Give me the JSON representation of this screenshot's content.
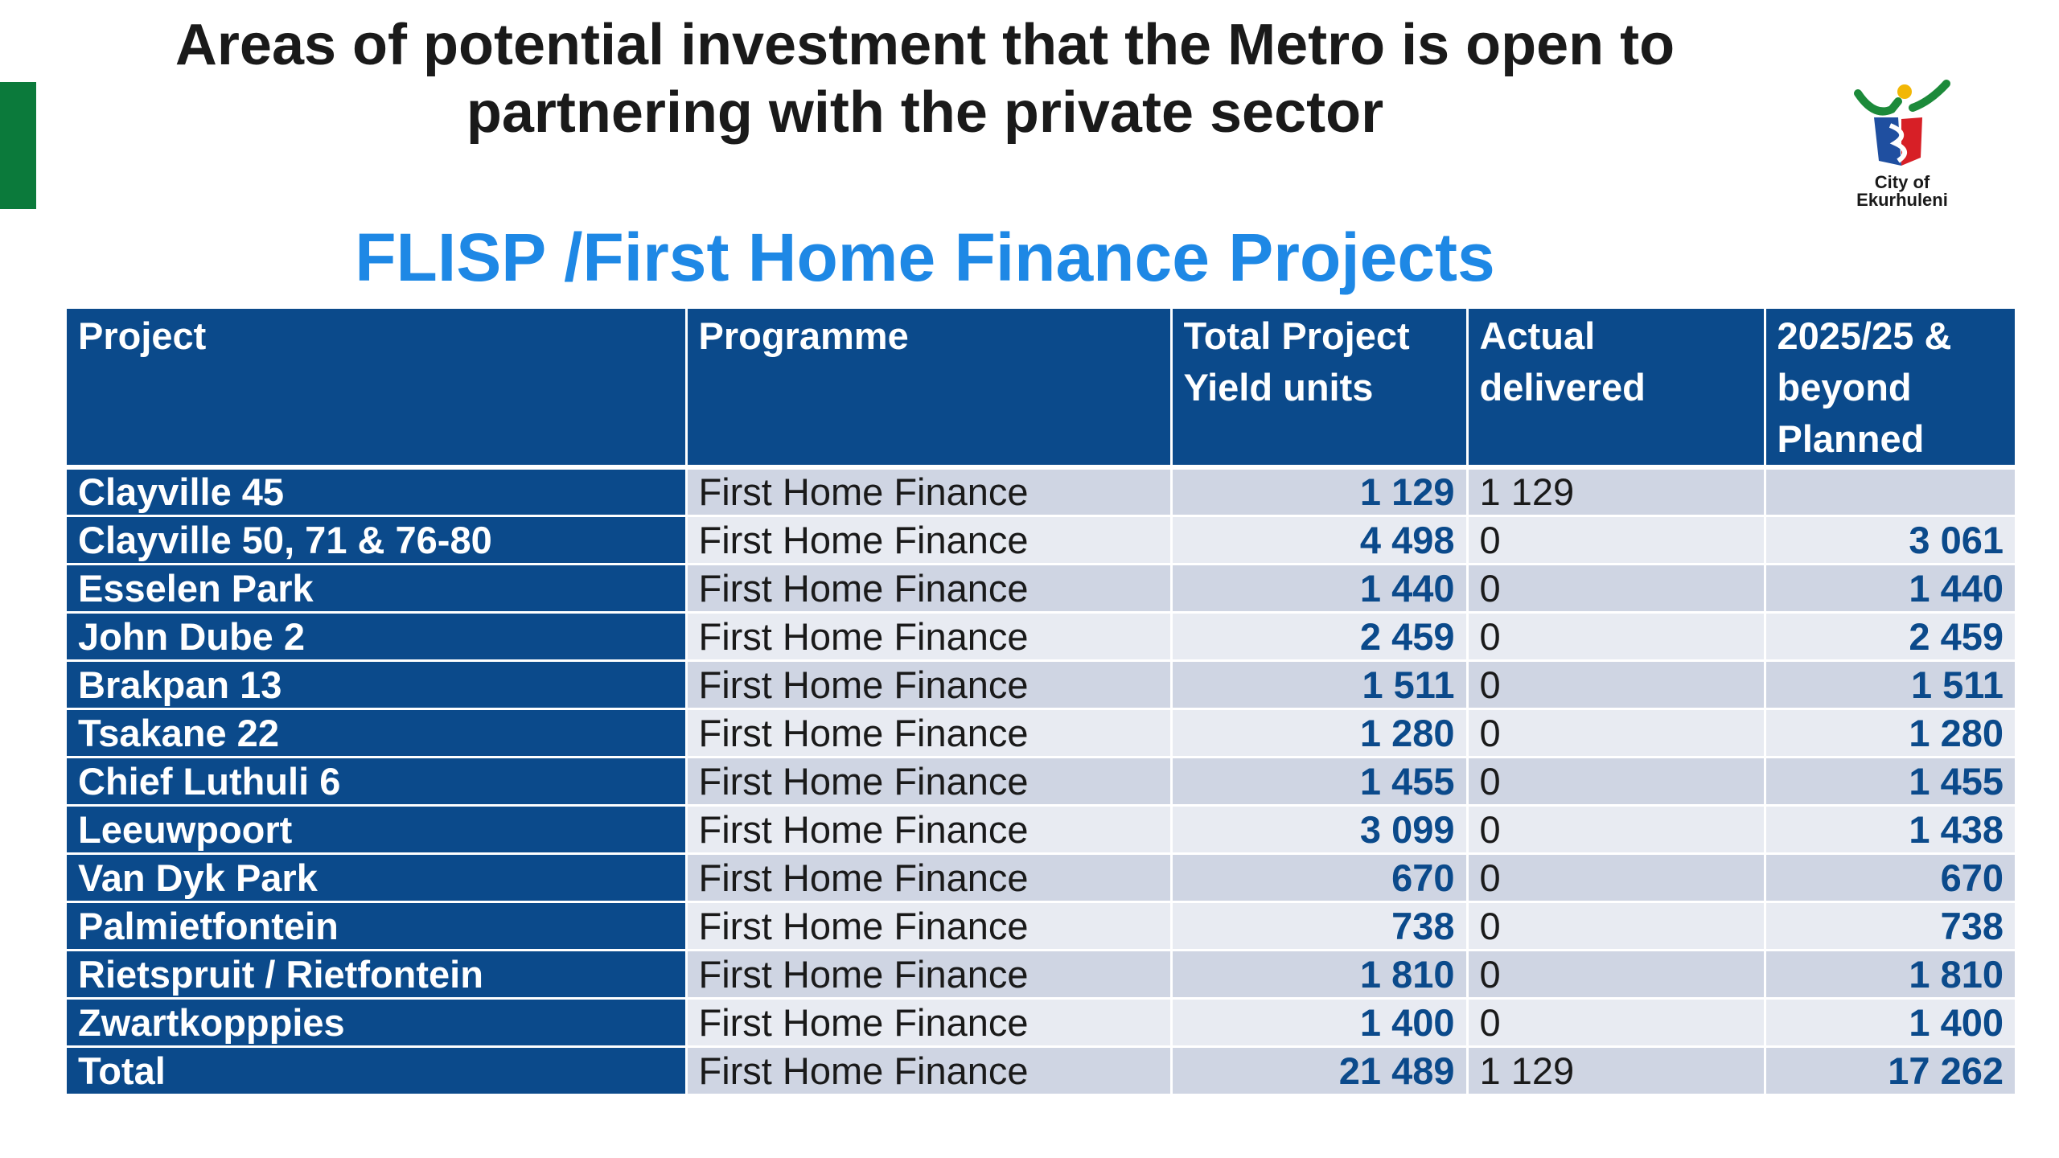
{
  "header": {
    "title_line1": "Areas of potential investment that the Metro is open to",
    "title_line2": "partnering with the private sector",
    "logo_text_line1": "City of",
    "logo_text_line2": "Ekurhuleni"
  },
  "subtitle": "FLISP /First Home Finance Projects",
  "colors": {
    "header_blue": "#0b4a8b",
    "subtitle_blue": "#1e88e5",
    "accent_green": "#0b7a3b",
    "row_shade_dark": "#cfd5e3",
    "row_shade_light": "#e8ebf2"
  },
  "table": {
    "headers": {
      "project": "Project",
      "programme": "Programme",
      "yield_line1": "Total Project",
      "yield_line2": "Yield units",
      "actual_line1": "Actual",
      "actual_line2": "delivered",
      "planned_line1": "2025/25 &",
      "planned_line2": "beyond",
      "planned_line3": "Planned"
    },
    "rows": [
      {
        "project": "Clayville 45",
        "programme": "First Home Finance",
        "yield": "1 129",
        "actual": "1 129",
        "planned": ""
      },
      {
        "project": "Clayville 50, 71 & 76-80",
        "programme": "First Home Finance",
        "yield": "4 498",
        "actual": "0",
        "planned": "3 061"
      },
      {
        "project": "Esselen Park",
        "programme": "First Home Finance",
        "yield": "1 440",
        "actual": "0",
        "planned": "1 440"
      },
      {
        "project": "John Dube 2",
        "programme": "First Home Finance",
        "yield": "2 459",
        "actual": "0",
        "planned": "2 459"
      },
      {
        "project": "Brakpan 13",
        "programme": "First Home Finance",
        "yield": "1 511",
        "actual": "0",
        "planned": "1 511"
      },
      {
        "project": "Tsakane 22",
        "programme": "First Home Finance",
        "yield": "1 280",
        "actual": "0",
        "planned": "1 280"
      },
      {
        "project": "Chief Luthuli 6",
        "programme": "First Home Finance",
        "yield": "1 455",
        "actual": "0",
        "planned": "1 455"
      },
      {
        "project": "Leeuwpoort",
        "programme": "First Home Finance",
        "yield": "3 099",
        "actual": "0",
        "planned": "1 438"
      },
      {
        "project": "Van Dyk Park",
        "programme": "First Home Finance",
        "yield": "670",
        "actual": "0",
        "planned": "670"
      },
      {
        "project": "Palmietfontein",
        "programme": "First Home Finance",
        "yield": "738",
        "actual": "0",
        "planned": "738"
      },
      {
        "project": "Rietspruit / Rietfontein",
        "programme": "First Home Finance",
        "yield": "1 810",
        "actual": "0",
        "planned": "1 810"
      },
      {
        "project": "Zwartkopppies",
        "programme": "First Home Finance",
        "yield": "1 400",
        "actual": "0",
        "planned": "1 400"
      },
      {
        "project": "Total",
        "programme": "First Home Finance",
        "yield": "21 489",
        "actual": "1 129",
        "planned": "17 262"
      }
    ]
  }
}
